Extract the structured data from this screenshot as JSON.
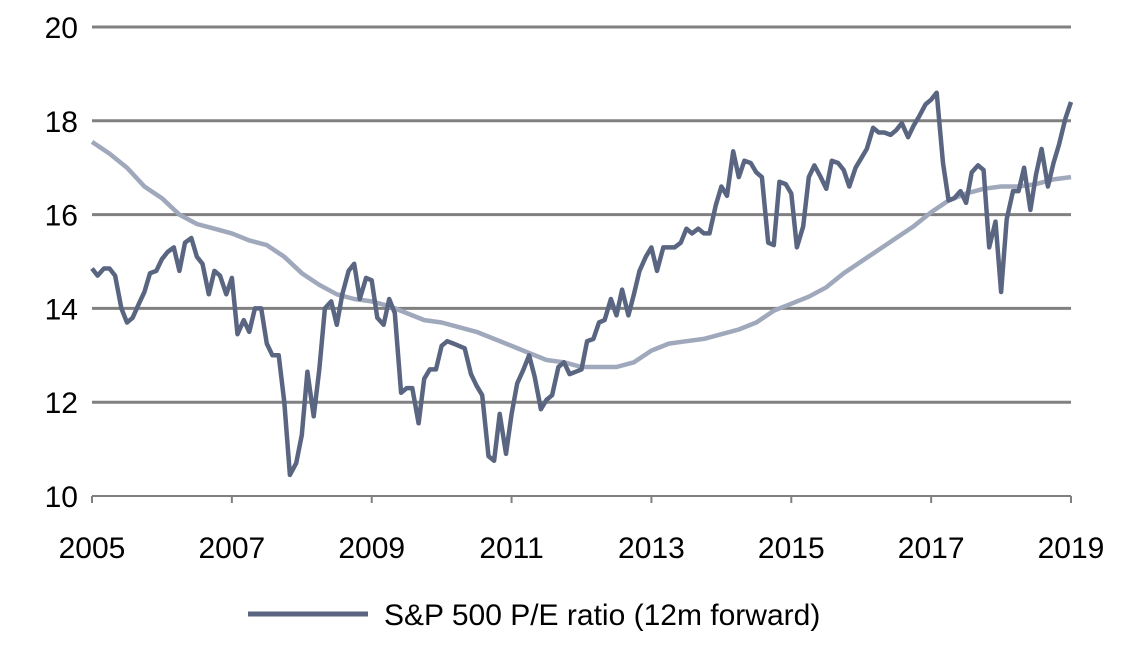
{
  "chart_data": {
    "type": "line",
    "title": "",
    "xlabel": "",
    "ylabel": "",
    "xlim": [
      2005,
      2019
    ],
    "ylim": [
      10,
      20
    ],
    "y_ticks": [
      10,
      12,
      14,
      16,
      18,
      20
    ],
    "x_ticks": [
      2005,
      2007,
      2009,
      2011,
      2013,
      2015,
      2017,
      2019
    ],
    "y_tick_labels": [
      "10",
      "12",
      "14",
      "16",
      "18",
      "20"
    ],
    "x_tick_labels": [
      "2005",
      "2007",
      "2009",
      "2011",
      "2013",
      "2015",
      "2017",
      "2019"
    ],
    "grid": "horizontal",
    "legend_position": "bottom",
    "colors": {
      "gridline": "#808080",
      "series": "#5a6681",
      "average": "#a0a8bc",
      "axis": "#808080"
    },
    "series": [
      {
        "name": "S&P 500 P/E ratio (12m forward)",
        "points": [
          [
            2005.0,
            14.85
          ],
          [
            2005.08,
            14.7
          ],
          [
            2005.17,
            14.85
          ],
          [
            2005.25,
            14.85
          ],
          [
            2005.33,
            14.7
          ],
          [
            2005.42,
            14.0
          ],
          [
            2005.5,
            13.7
          ],
          [
            2005.58,
            13.8
          ],
          [
            2005.67,
            14.1
          ],
          [
            2005.75,
            14.35
          ],
          [
            2005.83,
            14.75
          ],
          [
            2005.92,
            14.8
          ],
          [
            2006.0,
            15.05
          ],
          [
            2006.08,
            15.2
          ],
          [
            2006.17,
            15.3
          ],
          [
            2006.25,
            14.8
          ],
          [
            2006.33,
            15.4
          ],
          [
            2006.42,
            15.5
          ],
          [
            2006.5,
            15.1
          ],
          [
            2006.58,
            14.95
          ],
          [
            2006.67,
            14.3
          ],
          [
            2006.75,
            14.8
          ],
          [
            2006.83,
            14.7
          ],
          [
            2006.92,
            14.3
          ],
          [
            2007.0,
            14.65
          ],
          [
            2007.08,
            13.45
          ],
          [
            2007.17,
            13.75
          ],
          [
            2007.25,
            13.5
          ],
          [
            2007.33,
            14.0
          ],
          [
            2007.42,
            14.0
          ],
          [
            2007.5,
            13.25
          ],
          [
            2007.58,
            13.0
          ],
          [
            2007.67,
            13.0
          ],
          [
            2007.75,
            12.0
          ],
          [
            2007.83,
            10.45
          ],
          [
            2007.92,
            10.7
          ],
          [
            2008.0,
            11.3
          ],
          [
            2008.08,
            12.65
          ],
          [
            2008.17,
            11.7
          ],
          [
            2008.25,
            12.7
          ],
          [
            2008.33,
            14.0
          ],
          [
            2008.42,
            14.15
          ],
          [
            2008.5,
            13.65
          ],
          [
            2008.58,
            14.3
          ],
          [
            2008.67,
            14.8
          ],
          [
            2008.75,
            14.95
          ],
          [
            2008.83,
            14.2
          ],
          [
            2008.92,
            14.65
          ],
          [
            2009.0,
            14.6
          ],
          [
            2009.08,
            13.8
          ],
          [
            2009.17,
            13.65
          ],
          [
            2009.25,
            14.2
          ],
          [
            2009.33,
            13.9
          ],
          [
            2009.42,
            12.2
          ],
          [
            2009.5,
            12.3
          ],
          [
            2009.58,
            12.3
          ],
          [
            2009.67,
            11.55
          ],
          [
            2009.75,
            12.5
          ],
          [
            2009.83,
            12.7
          ],
          [
            2009.92,
            12.7
          ],
          [
            2010.0,
            13.2
          ],
          [
            2010.08,
            13.3
          ],
          [
            2010.17,
            13.25
          ],
          [
            2010.25,
            13.2
          ],
          [
            2010.33,
            13.15
          ],
          [
            2010.42,
            12.6
          ],
          [
            2010.5,
            12.35
          ],
          [
            2010.58,
            12.15
          ],
          [
            2010.67,
            10.85
          ],
          [
            2010.75,
            10.75
          ],
          [
            2010.83,
            11.75
          ],
          [
            2010.92,
            10.9
          ],
          [
            2011.0,
            11.75
          ],
          [
            2011.08,
            12.4
          ],
          [
            2011.17,
            12.7
          ],
          [
            2011.25,
            13.0
          ],
          [
            2011.33,
            12.55
          ],
          [
            2011.42,
            11.85
          ],
          [
            2011.5,
            12.05
          ],
          [
            2011.58,
            12.15
          ],
          [
            2011.67,
            12.75
          ],
          [
            2011.75,
            12.85
          ],
          [
            2011.83,
            12.6
          ],
          [
            2011.92,
            12.65
          ],
          [
            2012.0,
            12.7
          ],
          [
            2012.08,
            13.3
          ],
          [
            2012.17,
            13.35
          ],
          [
            2012.25,
            13.7
          ],
          [
            2012.33,
            13.75
          ],
          [
            2012.42,
            14.2
          ],
          [
            2012.5,
            13.85
          ],
          [
            2012.58,
            14.4
          ],
          [
            2012.67,
            13.85
          ],
          [
            2012.75,
            14.3
          ],
          [
            2012.83,
            14.8
          ],
          [
            2012.92,
            15.1
          ],
          [
            2013.0,
            15.3
          ],
          [
            2013.08,
            14.8
          ],
          [
            2013.17,
            15.3
          ],
          [
            2013.25,
            15.3
          ],
          [
            2013.33,
            15.3
          ],
          [
            2013.42,
            15.4
          ],
          [
            2013.5,
            15.7
          ],
          [
            2013.58,
            15.6
          ],
          [
            2013.67,
            15.7
          ],
          [
            2013.75,
            15.6
          ],
          [
            2013.83,
            15.6
          ],
          [
            2013.92,
            16.2
          ],
          [
            2014.0,
            16.6
          ],
          [
            2014.08,
            16.4
          ],
          [
            2014.17,
            17.35
          ],
          [
            2014.25,
            16.8
          ],
          [
            2014.33,
            17.15
          ],
          [
            2014.42,
            17.1
          ],
          [
            2014.5,
            16.9
          ],
          [
            2014.58,
            16.8
          ],
          [
            2014.67,
            15.4
          ],
          [
            2014.75,
            15.35
          ],
          [
            2014.83,
            16.7
          ],
          [
            2014.92,
            16.65
          ],
          [
            2015.0,
            16.45
          ],
          [
            2015.08,
            15.3
          ],
          [
            2015.17,
            15.75
          ],
          [
            2015.25,
            16.8
          ],
          [
            2015.33,
            17.05
          ],
          [
            2015.42,
            16.8
          ],
          [
            2015.5,
            16.55
          ],
          [
            2015.58,
            17.15
          ],
          [
            2015.67,
            17.1
          ],
          [
            2015.75,
            16.95
          ],
          [
            2015.83,
            16.6
          ],
          [
            2015.92,
            17.0
          ],
          [
            2016.0,
            17.2
          ],
          [
            2016.08,
            17.4
          ],
          [
            2016.17,
            17.85
          ],
          [
            2016.25,
            17.75
          ],
          [
            2016.33,
            17.75
          ],
          [
            2016.42,
            17.7
          ],
          [
            2016.5,
            17.8
          ],
          [
            2016.58,
            17.95
          ],
          [
            2016.67,
            17.65
          ],
          [
            2016.75,
            17.9
          ],
          [
            2016.83,
            18.1
          ],
          [
            2016.92,
            18.35
          ],
          [
            2017.0,
            18.45
          ],
          [
            2017.08,
            18.6
          ],
          [
            2017.17,
            17.1
          ],
          [
            2017.25,
            16.3
          ],
          [
            2017.33,
            16.35
          ],
          [
            2017.42,
            16.5
          ],
          [
            2017.5,
            16.25
          ],
          [
            2017.58,
            16.9
          ],
          [
            2017.67,
            17.05
          ],
          [
            2017.75,
            16.95
          ],
          [
            2017.83,
            15.3
          ],
          [
            2017.92,
            15.85
          ],
          [
            2018.0,
            14.35
          ],
          [
            2018.08,
            15.9
          ],
          [
            2018.17,
            16.5
          ],
          [
            2018.25,
            16.5
          ],
          [
            2018.33,
            17.0
          ],
          [
            2018.42,
            16.1
          ],
          [
            2018.5,
            16.85
          ],
          [
            2018.58,
            17.4
          ],
          [
            2018.67,
            16.6
          ],
          [
            2018.75,
            17.1
          ],
          [
            2018.83,
            17.5
          ],
          [
            2018.92,
            18.05
          ],
          [
            2019.0,
            18.4
          ]
        ]
      },
      {
        "name": "",
        "points": [
          [
            2005.0,
            17.55
          ],
          [
            2005.25,
            17.3
          ],
          [
            2005.5,
            17.0
          ],
          [
            2005.75,
            16.6
          ],
          [
            2006.0,
            16.35
          ],
          [
            2006.25,
            16.0
          ],
          [
            2006.5,
            15.8
          ],
          [
            2006.75,
            15.7
          ],
          [
            2007.0,
            15.6
          ],
          [
            2007.25,
            15.45
          ],
          [
            2007.5,
            15.35
          ],
          [
            2007.75,
            15.1
          ],
          [
            2008.0,
            14.75
          ],
          [
            2008.25,
            14.5
          ],
          [
            2008.5,
            14.3
          ],
          [
            2008.75,
            14.2
          ],
          [
            2009.0,
            14.15
          ],
          [
            2009.25,
            14.05
          ],
          [
            2009.5,
            13.9
          ],
          [
            2009.75,
            13.75
          ],
          [
            2010.0,
            13.7
          ],
          [
            2010.25,
            13.6
          ],
          [
            2010.5,
            13.5
          ],
          [
            2010.75,
            13.35
          ],
          [
            2011.0,
            13.2
          ],
          [
            2011.25,
            13.05
          ],
          [
            2011.5,
            12.9
          ],
          [
            2011.75,
            12.85
          ],
          [
            2012.0,
            12.75
          ],
          [
            2012.25,
            12.75
          ],
          [
            2012.5,
            12.75
          ],
          [
            2012.75,
            12.85
          ],
          [
            2013.0,
            13.1
          ],
          [
            2013.25,
            13.25
          ],
          [
            2013.5,
            13.3
          ],
          [
            2013.75,
            13.35
          ],
          [
            2014.0,
            13.45
          ],
          [
            2014.25,
            13.55
          ],
          [
            2014.5,
            13.7
          ],
          [
            2014.75,
            13.95
          ],
          [
            2015.0,
            14.1
          ],
          [
            2015.25,
            14.25
          ],
          [
            2015.5,
            14.45
          ],
          [
            2015.75,
            14.75
          ],
          [
            2016.0,
            15.0
          ],
          [
            2016.25,
            15.25
          ],
          [
            2016.5,
            15.5
          ],
          [
            2016.75,
            15.75
          ],
          [
            2017.0,
            16.05
          ],
          [
            2017.25,
            16.3
          ],
          [
            2017.5,
            16.45
          ],
          [
            2017.75,
            16.55
          ],
          [
            2018.0,
            16.6
          ],
          [
            2018.25,
            16.6
          ],
          [
            2018.5,
            16.65
          ],
          [
            2018.75,
            16.75
          ],
          [
            2019.0,
            16.8
          ]
        ]
      }
    ]
  }
}
